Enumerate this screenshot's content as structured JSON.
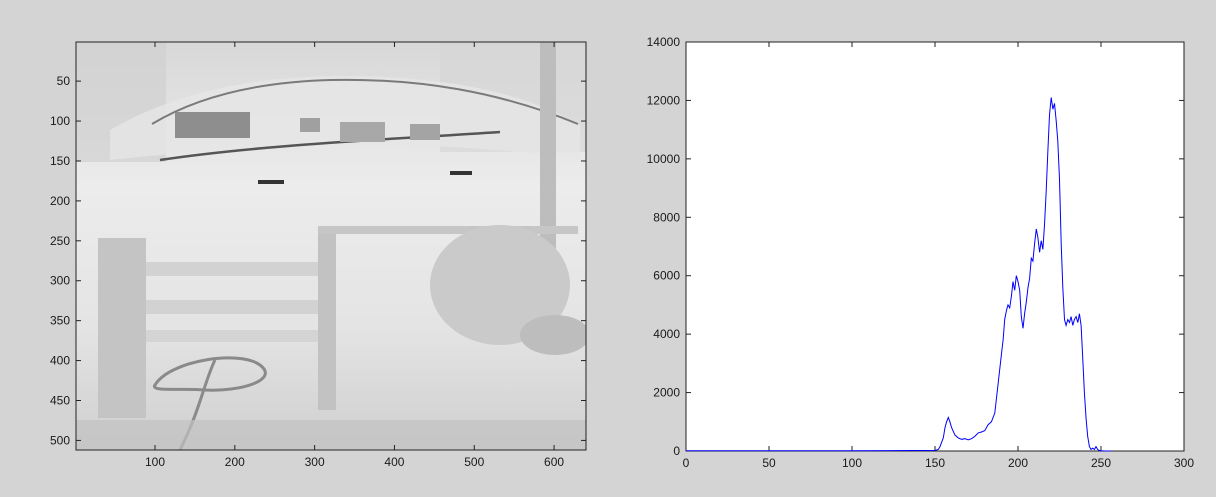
{
  "window": {
    "background": "#d4d4d4"
  },
  "image_axes": {
    "x_ticks": [
      "100",
      "200",
      "300",
      "400",
      "500",
      "600"
    ],
    "y_ticks": [
      "50",
      "100",
      "150",
      "200",
      "250",
      "300",
      "350",
      "400",
      "450",
      "500"
    ],
    "xlim": [
      1,
      640
    ],
    "ylim": [
      1,
      512
    ],
    "content": "grayscale photo (car, fence, garden hose)",
    "colormap": "gray"
  },
  "chart_data": [
    {
      "type": "line",
      "xlim": [
        0,
        300
      ],
      "ylim": [
        0,
        14000
      ],
      "x_ticks": [
        "0",
        "50",
        "100",
        "150",
        "200",
        "250",
        "300"
      ],
      "y_ticks": [
        "0",
        "2000",
        "4000",
        "6000",
        "8000",
        "10000",
        "12000",
        "14000"
      ],
      "grid": false,
      "series": [
        {
          "color": "#0000ff",
          "x": [
            0,
            50,
            100,
            150,
            152,
            153,
            155,
            156,
            157,
            158,
            159,
            160,
            162,
            164,
            166,
            168,
            170,
            172,
            174,
            176,
            178,
            180,
            182,
            184,
            186,
            188,
            190,
            191,
            192,
            193,
            194,
            195,
            196,
            197,
            198,
            199,
            200,
            201,
            202,
            203,
            204,
            205,
            206,
            207,
            208,
            209,
            210,
            211,
            212,
            213,
            214,
            215,
            216,
            217,
            218,
            219,
            220,
            221,
            222,
            223,
            224,
            225,
            226,
            227,
            228,
            229,
            230,
            231,
            232,
            233,
            234,
            235,
            236,
            237,
            238,
            239,
            240,
            241,
            242,
            243,
            244,
            245,
            246,
            247,
            248,
            249,
            250,
            252,
            254,
            256
          ],
          "y": [
            10,
            10,
            10,
            20,
            50,
            150,
            450,
            800,
            1000,
            1150,
            1000,
            800,
            550,
            450,
            400,
            420,
            380,
            420,
            500,
            620,
            650,
            700,
            900,
            1000,
            1300,
            2300,
            3300,
            3800,
            4500,
            4800,
            5000,
            4900,
            5300,
            5800,
            5500,
            6000,
            5800,
            5500,
            4600,
            4200,
            4700,
            5100,
            5600,
            5900,
            6600,
            6500,
            7100,
            7600,
            7300,
            6800,
            7200,
            6900,
            7800,
            8900,
            10300,
            11500,
            12100,
            11700,
            11900,
            11300,
            10600,
            9300,
            7100,
            5600,
            4500,
            4300,
            4500,
            4400,
            4600,
            4300,
            4500,
            4600,
            4400,
            4700,
            4300,
            3200,
            2000,
            1100,
            500,
            150,
            50,
            100,
            50,
            150,
            50,
            20,
            10,
            5,
            0,
            0
          ]
        }
      ]
    }
  ]
}
